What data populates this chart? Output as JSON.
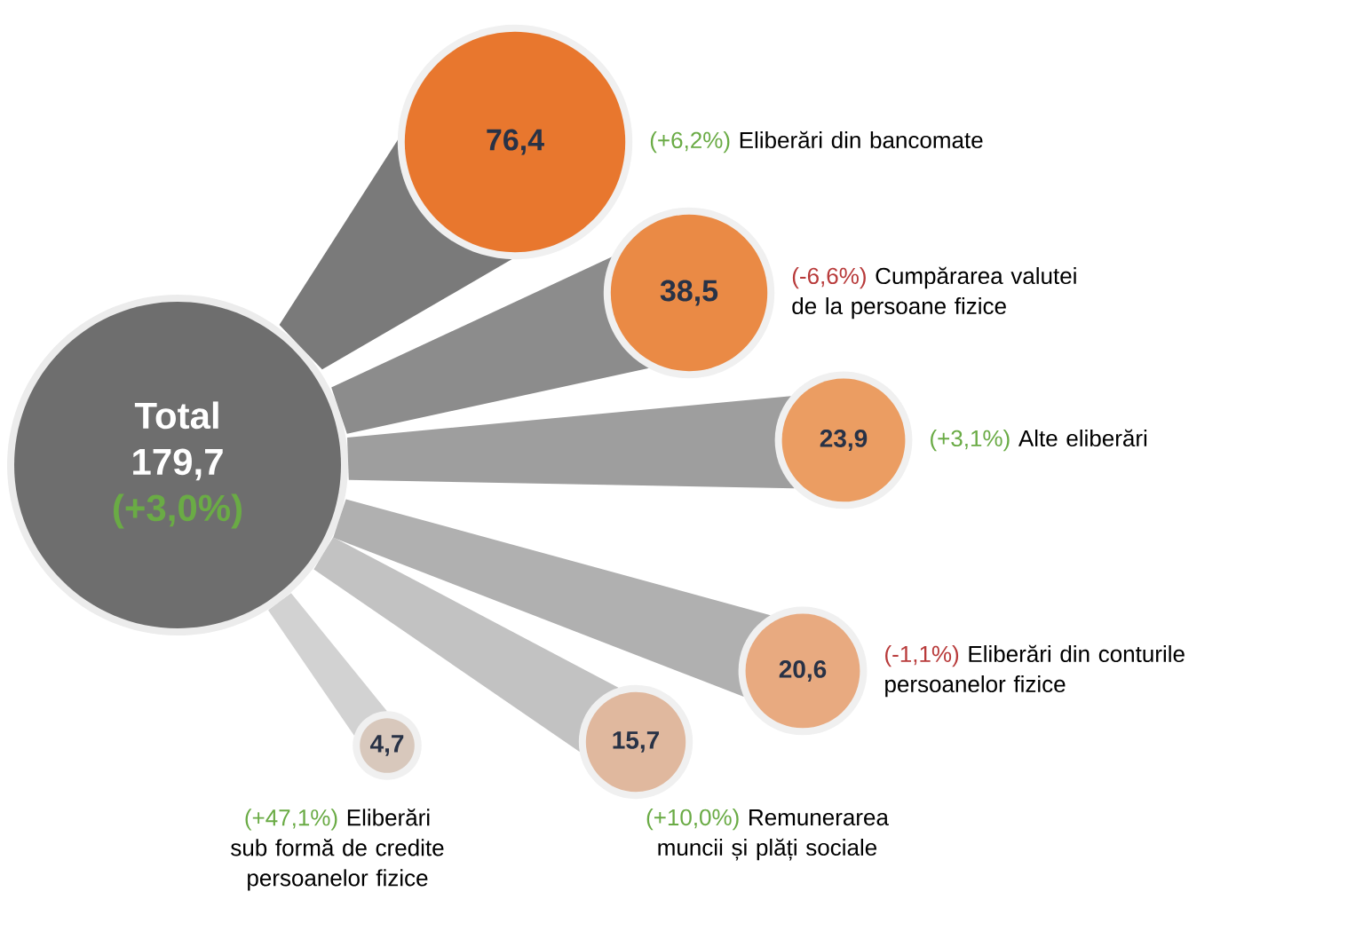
{
  "chart_data": {
    "type": "other",
    "categories": [
      "Eliberări din bancomate",
      "Cumpărarea valutei de la persoane fizice",
      "Alte eliberări",
      "Eliberări din conturile persoanelor fizice",
      "Remunerarea muncii și plăți sociale",
      "Eliberări sub formă de credite persoanelor fizice"
    ],
    "values": [
      76.4,
      38.5,
      23.9,
      20.6,
      15.7,
      4.7
    ],
    "value_labels": [
      "76,4",
      "38,5",
      "23,9",
      "20,6",
      "15,7",
      "4,7"
    ],
    "colors": [
      "#e8772e",
      "#ea8a45",
      "#eb9d62",
      "#e8aa80",
      "#e0b89e",
      "#d8c8bc"
    ],
    "annotations": [
      "(+6,2%)",
      "(-6,6%)",
      "(+3,1%)",
      "(-1,1%)",
      "(+10,0%)",
      "(+47,1%)",
      "Total",
      "179,7",
      "(+3,0%)"
    ]
  }
}
